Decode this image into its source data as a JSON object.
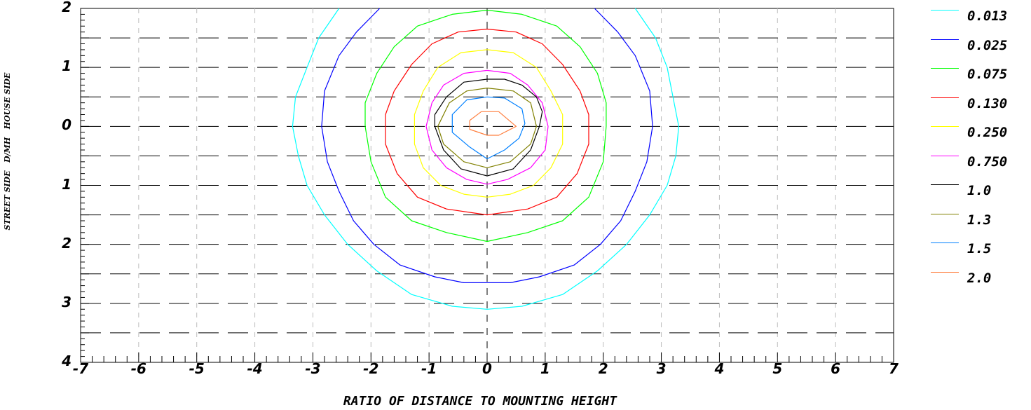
{
  "chart_data": {
    "type": "contour",
    "xlabel": "RATIO OF DISTANCE TO MOUNTING HEIGHT",
    "ylabel": "STREET SIDE   D/MH   HOUSE SIDE",
    "xlim": [
      -7,
      7
    ],
    "ylim": [
      -4,
      2
    ],
    "x_ticks": [
      -7,
      -6,
      -5,
      -4,
      -3,
      -2,
      -1,
      0,
      1,
      2,
      3,
      4,
      5,
      6,
      7
    ],
    "x_tick_labels": [
      "-7",
      "-6",
      "-5",
      "-4",
      "-3",
      "-2",
      "-1",
      "0",
      "1",
      "2",
      "3",
      "4",
      "5",
      "6",
      "7"
    ],
    "y_ticks": [
      2,
      1,
      0,
      -1,
      -2,
      -3,
      -4
    ],
    "y_tick_labels": [
      "2",
      "1",
      "0",
      "1",
      "2",
      "3",
      "4"
    ],
    "grid": true,
    "legend_position": "right",
    "series": [
      {
        "name": "0.013",
        "color": "#00ffff",
        "x": [
          -2.55,
          -2.9,
          -3.1,
          -3.3,
          -3.35,
          -3.25,
          -3.1,
          -2.8,
          -2.4,
          -1.9,
          -1.3,
          -0.6,
          0,
          0.6,
          1.3,
          1.9,
          2.4,
          2.8,
          3.1,
          3.25,
          3.3,
          3.1,
          2.9,
          2.55
        ],
        "y": [
          2.0,
          1.5,
          1.0,
          0.5,
          0.0,
          -0.5,
          -1.0,
          -1.5,
          -2.0,
          -2.45,
          -2.85,
          -3.05,
          -3.1,
          -3.05,
          -2.85,
          -2.45,
          -2.0,
          -1.5,
          -1.0,
          -0.5,
          0.0,
          1.0,
          1.5,
          2.0
        ]
      },
      {
        "name": "0.025",
        "color": "#0000ff",
        "x": [
          -1.85,
          -2.25,
          -2.55,
          -2.8,
          -2.85,
          -2.75,
          -2.55,
          -2.3,
          -1.95,
          -1.5,
          -0.9,
          -0.4,
          0,
          0.4,
          0.9,
          1.5,
          1.95,
          2.3,
          2.55,
          2.75,
          2.85,
          2.8,
          2.55,
          2.25,
          1.85
        ],
        "y": [
          2.0,
          1.6,
          1.2,
          0.6,
          0.0,
          -0.6,
          -1.1,
          -1.6,
          -2.0,
          -2.35,
          -2.55,
          -2.65,
          -2.65,
          -2.65,
          -2.55,
          -2.35,
          -2.0,
          -1.6,
          -1.1,
          -0.6,
          0.0,
          0.6,
          1.2,
          1.6,
          2.0
        ]
      },
      {
        "name": "0.075",
        "color": "#00ff00",
        "x": [
          0,
          -0.6,
          -1.2,
          -1.6,
          -1.9,
          -2.1,
          -2.1,
          -2.0,
          -1.75,
          -1.3,
          -0.7,
          0,
          0.7,
          1.3,
          1.75,
          2.0,
          2.05,
          2.05,
          1.9,
          1.6,
          1.2,
          0.6,
          0
        ],
        "y": [
          1.97,
          1.9,
          1.7,
          1.35,
          0.9,
          0.4,
          0.0,
          -0.6,
          -1.2,
          -1.6,
          -1.8,
          -1.95,
          -1.8,
          -1.6,
          -1.2,
          -0.6,
          0.0,
          0.4,
          0.9,
          1.35,
          1.7,
          1.9,
          1.97
        ]
      },
      {
        "name": "0.130",
        "color": "#ff0000",
        "x": [
          0,
          -0.5,
          -0.95,
          -1.3,
          -1.6,
          -1.75,
          -1.75,
          -1.55,
          -1.2,
          -0.7,
          0,
          0.7,
          1.2,
          1.55,
          1.75,
          1.75,
          1.6,
          1.3,
          0.95,
          0.5,
          0
        ],
        "y": [
          1.65,
          1.6,
          1.4,
          1.05,
          0.6,
          0.2,
          -0.3,
          -0.8,
          -1.2,
          -1.4,
          -1.5,
          -1.4,
          -1.2,
          -0.8,
          -0.3,
          0.2,
          0.6,
          1.05,
          1.4,
          1.6,
          1.65
        ]
      },
      {
        "name": "0.250",
        "color": "#ffff00",
        "x": [
          0,
          -0.45,
          -0.85,
          -1.1,
          -1.25,
          -1.25,
          -1.1,
          -0.8,
          -0.4,
          0,
          0.4,
          0.8,
          1.1,
          1.3,
          1.3,
          1.1,
          0.85,
          0.45,
          0
        ],
        "y": [
          1.3,
          1.25,
          1.0,
          0.6,
          0.2,
          -0.3,
          -0.7,
          -1.0,
          -1.15,
          -1.2,
          -1.15,
          -1.0,
          -0.7,
          -0.3,
          0.2,
          0.6,
          1.0,
          1.25,
          1.3
        ]
      },
      {
        "name": "0.750",
        "color": "#ff00ff",
        "x": [
          0,
          -0.4,
          -0.75,
          -0.95,
          -1.05,
          -0.95,
          -0.7,
          -0.35,
          0,
          0.35,
          0.75,
          1.0,
          1.05,
          0.95,
          0.7,
          0.4,
          0
        ],
        "y": [
          0.95,
          0.9,
          0.7,
          0.4,
          0.0,
          -0.4,
          -0.7,
          -0.9,
          -0.98,
          -0.9,
          -0.7,
          -0.4,
          0.0,
          0.4,
          0.7,
          0.9,
          0.95
        ]
      },
      {
        "name": "1.0",
        "color": "#000000",
        "x": [
          0,
          -0.4,
          -0.7,
          -0.9,
          -0.9,
          -0.75,
          -0.45,
          0,
          0.45,
          0.75,
          0.9,
          0.95,
          0.85,
          0.6,
          0.3,
          0
        ],
        "y": [
          0.8,
          0.75,
          0.5,
          0.2,
          0.0,
          -0.4,
          -0.72,
          -0.84,
          -0.72,
          -0.4,
          0.0,
          0.25,
          0.5,
          0.7,
          0.8,
          0.8
        ]
      },
      {
        "name": "1.3",
        "color": "#808000",
        "x": [
          0,
          -0.35,
          -0.65,
          -0.85,
          -0.75,
          -0.4,
          0,
          0.4,
          0.75,
          0.85,
          0.75,
          0.45,
          0
        ],
        "y": [
          0.65,
          0.6,
          0.4,
          0.0,
          -0.3,
          -0.6,
          -0.7,
          -0.6,
          -0.3,
          0.0,
          0.4,
          0.6,
          0.65
        ]
      },
      {
        "name": "1.5",
        "color": "#0080ff",
        "x": [
          0,
          -0.35,
          -0.6,
          -0.6,
          -0.3,
          0,
          0.3,
          0.55,
          0.65,
          0.6,
          0.3,
          0
        ],
        "y": [
          0.5,
          0.45,
          0.2,
          -0.1,
          -0.35,
          -0.55,
          -0.4,
          -0.2,
          0.05,
          0.3,
          0.48,
          0.5
        ]
      },
      {
        "name": "2.0",
        "color": "#ff8040",
        "x": [
          -0.3,
          -0.1,
          0.2,
          0.5,
          0.2,
          0,
          -0.3,
          -0.3
        ],
        "y": [
          0.1,
          0.25,
          0.25,
          0.0,
          -0.15,
          -0.15,
          -0.05,
          0.1
        ]
      }
    ]
  }
}
